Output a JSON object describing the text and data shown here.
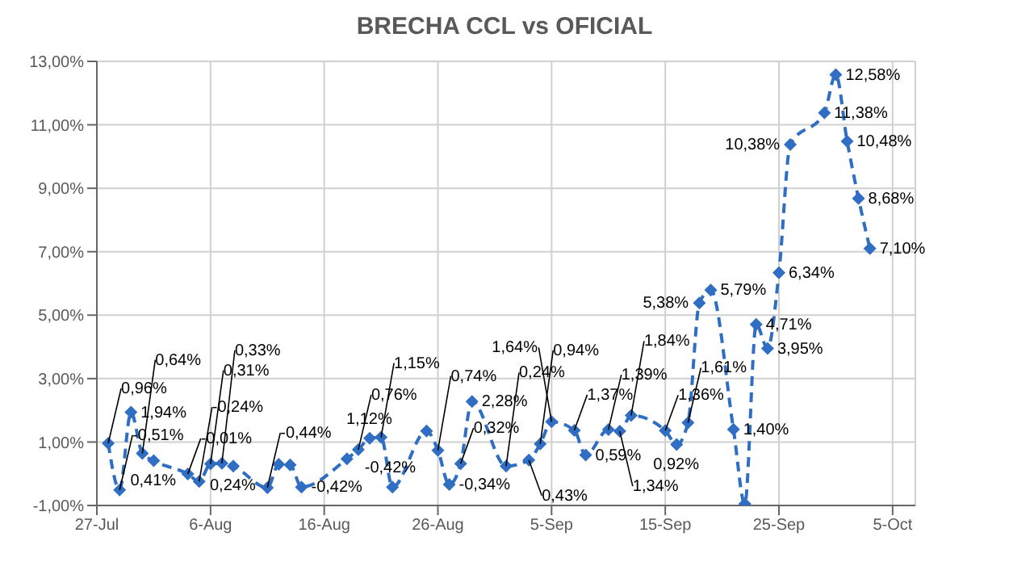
{
  "chart_data": {
    "type": "line",
    "title": "BRECHA CCL vs OFICIAL",
    "x": [
      "--07-28",
      "--07-29",
      "--07-30",
      "--07-31",
      "--08-01",
      "--08-04",
      "--08-05",
      "--08-06",
      "--08-07",
      "--08-08",
      "--08-11",
      "--08-12",
      "--08-13",
      "--08-14",
      "--08-18",
      "--08-19",
      "--08-20",
      "--08-21",
      "--08-22",
      "--08-25",
      "--08-26",
      "--08-27",
      "--08-28",
      "--08-29",
      "--09-01",
      "--09-03",
      "--09-04",
      "--09-05",
      "--09-07",
      "--09-08",
      "--09-10",
      "--09-11",
      "--09-12",
      "--09-15",
      "--09-16",
      "--09-17",
      "--09-18",
      "--09-19",
      "--09-21",
      "--09-22",
      "--09-23",
      "--09-24",
      "--09-25",
      "--09-26",
      "--09-29",
      "--09-30",
      "--10-01",
      "--10-02",
      "--10-03"
    ],
    "series": [
      {
        "color": "#2f6ec2",
        "line_style": "dashed",
        "marker": "diamond",
        "values": [
          0.96,
          -0.51,
          1.94,
          0.64,
          0.41,
          -0.01,
          -0.24,
          0.31,
          0.33,
          0.24,
          -0.44,
          0.3,
          0.28,
          -0.42,
          0.47,
          0.76,
          1.12,
          1.15,
          -0.42,
          1.35,
          0.74,
          -0.34,
          0.32,
          2.28,
          0.24,
          0.43,
          0.94,
          1.64,
          1.37,
          0.59,
          1.39,
          1.34,
          1.84,
          1.36,
          0.92,
          1.61,
          5.38,
          5.79,
          1.4,
          -0.95,
          4.71,
          3.95,
          6.34,
          10.38,
          11.38,
          12.58,
          10.48,
          8.68,
          7.1
        ],
        "value_labels": [
          "0,96%",
          "-0,51%",
          "1,94%",
          "0,64%",
          "0,41%",
          "-0,01%",
          "-0,24%",
          "0,31%",
          "0,33%",
          "0,24%",
          "-0,44%",
          null,
          null,
          "-0,42%",
          null,
          "0,76%",
          "1,12%",
          "1,15%",
          "-0,42%",
          null,
          "0,74%",
          "-0,34%",
          "0,32%",
          "2,28%",
          "0,24%",
          "0,43%",
          "0,94%",
          "1,64%",
          "1,37%",
          "0,59%",
          "1,39%",
          "1,34%",
          "1,84%",
          "1,36%",
          "0,92%",
          "1,61%",
          "5,38%",
          "5,79%",
          "1,40%",
          null,
          "4,71%",
          "3,95%",
          "6,34%",
          "10,38%",
          "11,38%",
          "12,58%",
          "10,48%",
          "8,68%",
          "7,10%"
        ]
      }
    ],
    "xlim": [
      "--07-27",
      "--10-07"
    ],
    "xticks": [
      {
        "value": "--07-27",
        "label": "27-Jul"
      },
      {
        "value": "--08-06",
        "label": "6-Aug"
      },
      {
        "value": "--08-16",
        "label": "16-Aug"
      },
      {
        "value": "--08-26",
        "label": "26-Aug"
      },
      {
        "value": "--09-05",
        "label": "5-Sep"
      },
      {
        "value": "--09-15",
        "label": "15-Sep"
      },
      {
        "value": "--09-25",
        "label": "25-Sep"
      },
      {
        "value": "--10-05",
        "label": "5-Oct"
      }
    ],
    "ylim": [
      -1,
      13
    ],
    "yticks": [
      {
        "value": -1,
        "label": "-1,00%"
      },
      {
        "value": 1,
        "label": "1,00%"
      },
      {
        "value": 3,
        "label": "3,00%"
      },
      {
        "value": 5,
        "label": "5,00%"
      },
      {
        "value": 7,
        "label": "7,00%"
      },
      {
        "value": 9,
        "label": "9,00%"
      },
      {
        "value": 11,
        "label": "11,00%"
      },
      {
        "value": 13,
        "label": "13,00%"
      }
    ],
    "grid": true,
    "legend": false
  }
}
